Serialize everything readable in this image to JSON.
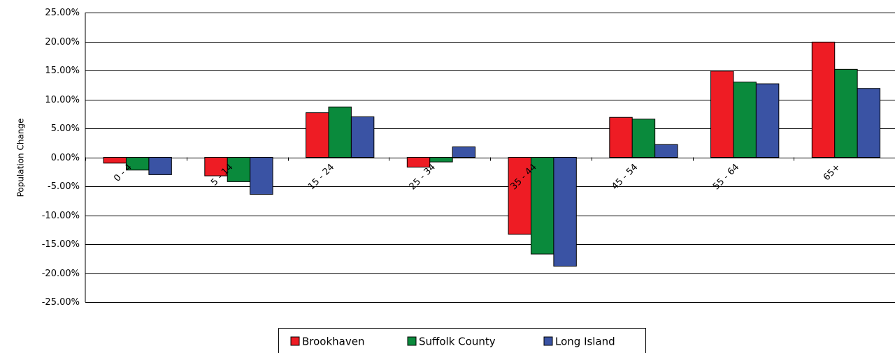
{
  "chart_data": {
    "type": "bar",
    "y_label": "Population Change",
    "categories": [
      "0 - 4",
      "5 - 14",
      "15 - 24",
      "25 - 34",
      "35 - 44",
      "45 - 54",
      "55 - 64",
      "65+"
    ],
    "series": [
      {
        "name": "Brookhaven",
        "color": "#ee1c24",
        "values": [
          -1.0,
          -3.2,
          7.7,
          -1.7,
          -13.3,
          6.9,
          14.9,
          19.9
        ]
      },
      {
        "name": "Suffolk County",
        "color": "#0a8a3c",
        "values": [
          -2.2,
          -4.2,
          8.7,
          -0.8,
          -16.7,
          6.6,
          13.0,
          15.2
        ]
      },
      {
        "name": "Long Island",
        "color": "#3a53a4",
        "values": [
          -3.0,
          -6.4,
          7.0,
          1.8,
          -18.8,
          2.2,
          12.7,
          11.9
        ]
      }
    ],
    "ylim": [
      -25,
      25
    ],
    "yticks": [
      {
        "value": 25,
        "label": "25.00%"
      },
      {
        "value": 20,
        "label": "20.00%"
      },
      {
        "value": 15,
        "label": "15.00%"
      },
      {
        "value": 10,
        "label": "10.00%"
      },
      {
        "value": 5,
        "label": "5.00%"
      },
      {
        "value": 0,
        "label": "0.00%"
      },
      {
        "value": -5,
        "label": "-5.00%"
      },
      {
        "value": -10,
        "label": "-10.00%"
      },
      {
        "value": -15,
        "label": "-15.00%"
      },
      {
        "value": -20,
        "label": "-20.00%"
      },
      {
        "value": -25,
        "label": "-25.00%"
      }
    ],
    "grid": true,
    "legend": "bottom"
  }
}
